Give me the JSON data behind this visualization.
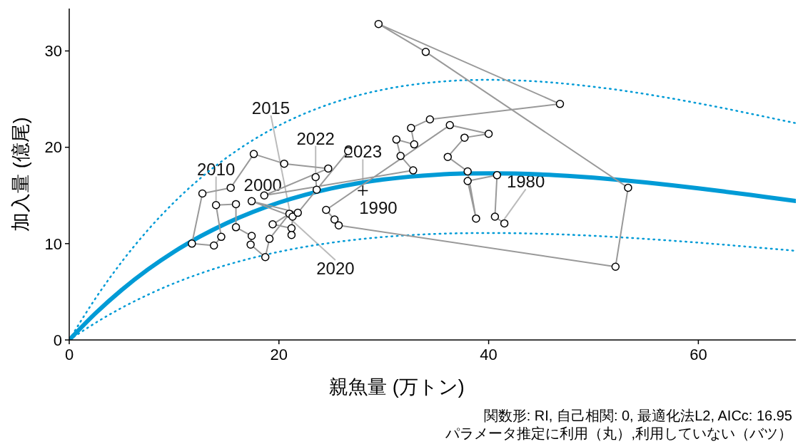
{
  "chart_data": {
    "type": "line",
    "xlabel": "親魚量 (万トン)",
    "ylabel": "加入量 (億尾)",
    "xlim": [
      0,
      69.3
    ],
    "ylim": [
      0,
      34.4
    ],
    "xticks": [
      0,
      20,
      40,
      60
    ],
    "yticks": [
      0,
      10,
      20,
      30
    ],
    "grid": false,
    "series": [
      {
        "color": "#009bd6",
        "line_style": "solid",
        "marker": "none",
        "x": [
          0,
          2.5,
          5,
          7.5,
          10,
          12.5,
          15,
          17.5,
          20,
          22.5,
          25,
          27.5,
          30,
          32.5,
          35,
          37.5,
          40,
          42.5,
          45,
          47.5,
          50,
          52.5,
          55,
          57.5,
          60,
          62.5,
          65,
          67.5,
          69.3
        ],
        "values": [
          0,
          2.76,
          5.19,
          7.31,
          9.16,
          10.75,
          12.12,
          13.28,
          14.26,
          15.07,
          15.73,
          16.26,
          16.66,
          16.95,
          17.15,
          17.27,
          17.3,
          17.27,
          17.18,
          17.03,
          16.84,
          16.61,
          16.35,
          16.06,
          15.74,
          15.4,
          15.05,
          14.68,
          14.42
        ]
      },
      {
        "type": "line",
        "color": "#009bd6",
        "line_style": "dotted",
        "marker": "none",
        "x": [
          0,
          2.5,
          5,
          7.5,
          10,
          12.5,
          15,
          17.5,
          20,
          22.5,
          25,
          27.5,
          30,
          32.5,
          35,
          37.5,
          40,
          42.5,
          45,
          47.5,
          50,
          52.5,
          55,
          57.5,
          60,
          62.5,
          65,
          67.5,
          69.3
        ],
        "values": [
          0,
          4.31,
          8.1,
          11.41,
          14.29,
          16.78,
          18.91,
          20.73,
          22.26,
          23.52,
          24.55,
          25.37,
          26.0,
          26.46,
          26.77,
          26.95,
          27.0,
          26.95,
          26.81,
          26.58,
          26.28,
          25.93,
          25.52,
          25.06,
          24.56,
          24.04,
          23.48,
          22.91,
          22.5
        ]
      },
      {
        "type": "line",
        "color": "#009bd6",
        "line_style": "dotted",
        "marker": "none",
        "x": [
          0,
          2.5,
          5,
          7.5,
          10,
          12.5,
          15,
          17.5,
          20,
          22.5,
          25,
          27.5,
          30,
          32.5,
          35,
          37.5,
          40,
          42.5,
          45,
          47.5,
          50,
          52.5,
          55,
          57.5,
          60,
          62.5,
          65,
          67.5,
          69.3
        ],
        "values": [
          0,
          1.77,
          3.33,
          4.69,
          5.88,
          6.9,
          7.78,
          8.52,
          9.15,
          9.67,
          10.09,
          10.43,
          10.69,
          10.88,
          11.01,
          11.08,
          11.1,
          11.08,
          11.02,
          10.93,
          10.81,
          10.66,
          10.49,
          10.3,
          10.1,
          9.88,
          9.65,
          9.42,
          9.25
        ]
      },
      {
        "color": "#999999",
        "line_style": "solid",
        "marker": "circle",
        "x": [
          41.5,
          40.6,
          40.8,
          38.0,
          38.8,
          38.0,
          36.1,
          37.7,
          40.0,
          36.3,
          24.5,
          25.3,
          25.7,
          52.1,
          53.3,
          34.0,
          29.5,
          46.8,
          34.4,
          32.6,
          32.9,
          31.2,
          31.6,
          32.8,
          18.6,
          24.7,
          20.5,
          17.6,
          15.4,
          12.7,
          11.7,
          13.8,
          14.5,
          14.0,
          15.9,
          15.9,
          17.4,
          17.3,
          18.7,
          19.1,
          21.0,
          19.4,
          21.2,
          21.2,
          21.3,
          17.4,
          21.8,
          26.6,
          23.6,
          23.5
        ],
        "values": [
          12.1,
          12.8,
          17.1,
          16.5,
          12.6,
          17.5,
          19.0,
          21.0,
          21.4,
          22.3,
          13.5,
          12.5,
          11.9,
          7.6,
          15.8,
          29.9,
          32.8,
          24.5,
          22.9,
          22.0,
          20.3,
          20.8,
          19.1,
          17.6,
          15.0,
          17.8,
          18.3,
          19.3,
          15.8,
          15.2,
          10.0,
          9.8,
          10.7,
          14.0,
          14.1,
          11.7,
          10.8,
          9.9,
          8.6,
          10.5,
          13.1,
          12.0,
          11.6,
          10.9,
          12.8,
          14.4,
          13.2,
          19.6,
          15.6,
          16.9
        ]
      },
      {
        "type": "scatter",
        "color": "#000000",
        "marker": "cross",
        "x": [
          28.0
        ],
        "values": [
          15.5
        ]
      }
    ],
    "annotations": [
      {
        "text": "1980",
        "x": 41.5,
        "y": 12.1
      },
      {
        "text": "1990",
        "x": 24.5,
        "y": 13.5
      },
      {
        "text": "2000",
        "x": 18.6,
        "y": 15.0
      },
      {
        "text": "2010",
        "x": 14.0,
        "y": 14.0
      },
      {
        "text": "2015",
        "x": 21.0,
        "y": 13.1
      },
      {
        "text": "2020",
        "x": 21.3,
        "y": 12.8
      },
      {
        "text": "2022",
        "x": 23.5,
        "y": 16.9
      },
      {
        "text": "2023",
        "x": 28.0,
        "y": 15.5
      },
      "関数形: RI, 自己相関: 0, 最適化法L2, AICc: 16.95",
      "パラメータ推定に利用（丸）,利用していない（バツ）"
    ]
  }
}
